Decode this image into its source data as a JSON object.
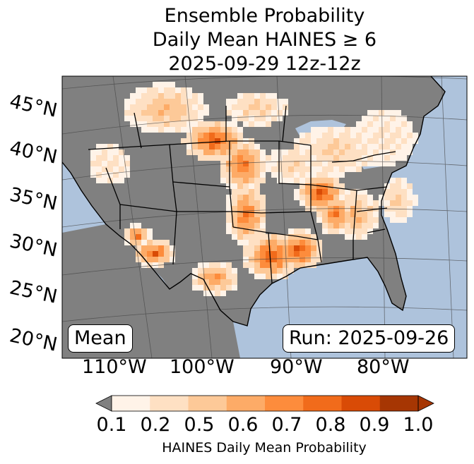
{
  "title": {
    "line1": "Ensemble Probability",
    "line2": "Daily Mean HAINES ≥ 6",
    "line3": "2025-09-29 12z-12z"
  },
  "boxes": {
    "mean": "Mean",
    "run": "Run: 2025-09-26"
  },
  "lat_labels": [
    "45°N",
    "40°N",
    "35°N",
    "30°N",
    "25°N",
    "20°N"
  ],
  "lon_labels": [
    "110°W",
    "100°W",
    "90°W",
    "80°W"
  ],
  "colorbar": {
    "label": "HAINES Daily Mean Probability",
    "ticks": [
      "0.1",
      "0.2",
      "0.5",
      "0.6",
      "0.7",
      "0.8",
      "0.9",
      "1.0"
    ],
    "colors": [
      "#fff3e8",
      "#fee0c3",
      "#fdc998",
      "#fdab67",
      "#fd8c3c",
      "#f16b1b",
      "#d94b06",
      "#a63603"
    ],
    "under_color": "#808080"
  },
  "map_colors": {
    "ocean": "#aec3dc",
    "land_low": "#808080",
    "lake": "#aec3dc"
  }
}
